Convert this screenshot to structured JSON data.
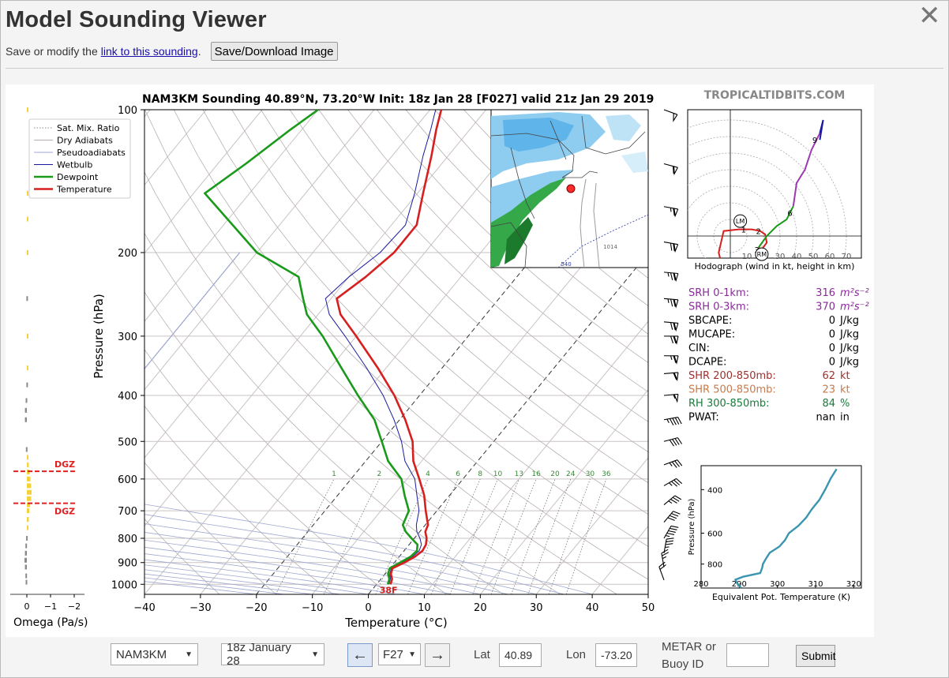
{
  "window": {
    "title": "Model Sounding Viewer",
    "close_glyph": "✕",
    "subline_text": "Save or modify the",
    "link_text": "link to this sounding",
    "subline_period": ".",
    "save_button": "Save/Download Image"
  },
  "figure": {
    "chart_title": "NAM3KM Sounding 40.89°N, 73.20°W Init: 18z Jan 28 [F027] valid 21z Jan 29 2019",
    "brand": "TROPICALTIDBITS.COM",
    "legend": [
      "Sat. Mix. Ratio",
      "Dry Adiabats",
      "Pseudoadiabats",
      "Wetbulb",
      "Dewpoint",
      "Temperature"
    ],
    "legend_colors": [
      "#888888",
      "#b9b0b0",
      "#9fa8d0",
      "#1a1aa0",
      "#1a9a1a",
      "#d61f1f"
    ],
    "xlabel": "Temperature (°C)",
    "ylabel": "Pressure (hPa)",
    "omega_label": "Omega (Pa/s)",
    "omega_ticks": [
      "0",
      "−1",
      "−2"
    ],
    "dgz_label": "DGZ",
    "surface_temp_label": "38F",
    "mix_ratio_labels": [
      "1",
      "2",
      "4",
      "6",
      "8",
      "10",
      "13",
      "16",
      "20",
      "24",
      "30",
      "36"
    ],
    "hodograph_caption": "Hodograph (wind in kt, height in km)",
    "hodo_ring_labels": [
      "10",
      "20",
      "30",
      "40",
      "50",
      "60",
      "70"
    ],
    "hodo_height_labels": [
      "1",
      "2",
      "3",
      "6",
      "9"
    ],
    "hodo_markers": [
      "LM",
      "RM"
    ],
    "theta_e_xlabel": "Equivalent Pot. Temperature (K)",
    "theta_e_ylabel": "Pressure (hPa)",
    "theta_e_xticks": [
      "280",
      "290",
      "300",
      "310",
      "320"
    ],
    "theta_e_yticks": [
      "400",
      "600",
      "800"
    ],
    "map_labels": [
      "540",
      "1014"
    ]
  },
  "indices": [
    {
      "label": "SRH 0-1km:",
      "value": "316",
      "unit": "m²s⁻²",
      "color": "#8a2a9a"
    },
    {
      "label": "SRH 0-3km:",
      "value": "370",
      "unit": "m²s⁻²",
      "color": "#8a2a9a"
    },
    {
      "label": "SBCAPE:",
      "value": "0",
      "unit": "J/kg",
      "color": "#000000"
    },
    {
      "label": "MUCAPE:",
      "value": "0",
      "unit": "J/kg",
      "color": "#000000"
    },
    {
      "label": "CIN:",
      "value": "0",
      "unit": "J/kg",
      "color": "#000000"
    },
    {
      "label": "DCAPE:",
      "value": "0",
      "unit": "J/kg",
      "color": "#000000"
    },
    {
      "label": "SHR 200-850mb:",
      "value": "62",
      "unit": "kt",
      "color": "#a03030"
    },
    {
      "label": "SHR 500-850mb:",
      "value": "23",
      "unit": "kt",
      "color": "#c87a4a"
    },
    {
      "label": "RH 300-850mb:",
      "value": "84",
      "unit": "%",
      "color": "#1a7a3a"
    },
    {
      "label": "PWAT:",
      "value": "nan",
      "unit": "in",
      "color": "#000000"
    }
  ],
  "controls": {
    "model": "NAM3KM",
    "run": "18z January 28",
    "prev_glyph": "🡐",
    "forecast_hour": "F27",
    "next_glyph": "🡒",
    "lat_label": "Lat",
    "lat_value": "40.89",
    "lon_label": "Lon",
    "lon_value": "-73.20",
    "metar_label_line1": "METAR or",
    "metar_label_line2": "Buoy ID",
    "metar_value": "",
    "submit": "Submit"
  },
  "chart_data": {
    "type": "line",
    "title": "NAM3KM Sounding 40.89°N, 73.20°W Init: 18z Jan 28 [F027] valid 21z Jan 29 2019",
    "xlabel": "Temperature (°C)",
    "ylabel": "Pressure (hPa)",
    "xlim": [
      -40,
      50
    ],
    "ylim": [
      1050,
      100
    ],
    "yscale": "log",
    "x_ticks": [
      -40,
      -30,
      -20,
      -10,
      0,
      10,
      20,
      30,
      40,
      50
    ],
    "y_ticks": [
      100,
      200,
      300,
      400,
      500,
      600,
      700,
      800,
      900,
      1000
    ],
    "skew": true,
    "series": [
      {
        "name": "Temperature",
        "color": "#d61f1f",
        "points": [
          [
            1000,
            2.5
          ],
          [
            975,
            2.0
          ],
          [
            950,
            1.0
          ],
          [
            925,
            0.5
          ],
          [
            900,
            1.8
          ],
          [
            875,
            2.8
          ],
          [
            850,
            3.3
          ],
          [
            825,
            3.0
          ],
          [
            800,
            2.2
          ],
          [
            775,
            1.0
          ],
          [
            750,
            0.5
          ],
          [
            700,
            -2.0
          ],
          [
            650,
            -4.5
          ],
          [
            600,
            -7.8
          ],
          [
            550,
            -11.5
          ],
          [
            500,
            -14.5
          ],
          [
            450,
            -19.0
          ],
          [
            400,
            -24.5
          ],
          [
            350,
            -31.5
          ],
          [
            300,
            -40.0
          ],
          [
            270,
            -46.0
          ],
          [
            250,
            -49.0
          ],
          [
            225,
            -47.0
          ],
          [
            200,
            -45.5
          ],
          [
            175,
            -45.5
          ],
          [
            150,
            -49.0
          ],
          [
            125,
            -53.0
          ],
          [
            110,
            -56.0
          ],
          [
            100,
            -58.0
          ]
        ]
      },
      {
        "name": "Dewpoint",
        "color": "#1a9a1a",
        "points": [
          [
            1000,
            2.0
          ],
          [
            975,
            1.5
          ],
          [
            950,
            0.5
          ],
          [
            925,
            0.0
          ],
          [
            900,
            1.0
          ],
          [
            875,
            2.0
          ],
          [
            850,
            2.3
          ],
          [
            825,
            1.5
          ],
          [
            800,
            -0.5
          ],
          [
            775,
            -2.5
          ],
          [
            750,
            -4.0
          ],
          [
            700,
            -5.0
          ],
          [
            650,
            -8.0
          ],
          [
            600,
            -11.0
          ],
          [
            550,
            -16.0
          ],
          [
            500,
            -20.0
          ],
          [
            450,
            -24.5
          ],
          [
            400,
            -31.0
          ],
          [
            350,
            -38.0
          ],
          [
            300,
            -46.0
          ],
          [
            270,
            -52.0
          ],
          [
            250,
            -55.0
          ],
          [
            225,
            -59.0
          ],
          [
            200,
            -70.0
          ],
          [
            150,
            -88.0
          ],
          [
            130,
            -85.0
          ],
          [
            110,
            -82.0
          ],
          [
            100,
            -80.0
          ]
        ]
      },
      {
        "name": "Wetbulb",
        "color": "#1a1aa0",
        "points": [
          [
            1000,
            2.2
          ],
          [
            975,
            1.7
          ],
          [
            950,
            0.8
          ],
          [
            925,
            0.3
          ],
          [
            900,
            1.4
          ],
          [
            875,
            2.4
          ],
          [
            850,
            2.7
          ],
          [
            825,
            2.2
          ],
          [
            800,
            1.0
          ],
          [
            775,
            -0.5
          ],
          [
            750,
            -1.6
          ],
          [
            700,
            -3.2
          ],
          [
            650,
            -5.8
          ],
          [
            600,
            -8.6
          ],
          [
            550,
            -13.0
          ],
          [
            500,
            -16.5
          ],
          [
            450,
            -21.0
          ],
          [
            400,
            -26.5
          ],
          [
            350,
            -33.5
          ],
          [
            300,
            -42.0
          ],
          [
            270,
            -48.0
          ],
          [
            250,
            -51.0
          ],
          [
            225,
            -50.0
          ],
          [
            200,
            -48.0
          ],
          [
            175,
            -47.5
          ],
          [
            150,
            -50.5
          ],
          [
            125,
            -54.5
          ],
          [
            110,
            -57.0
          ],
          [
            100,
            -59.0
          ]
        ]
      }
    ],
    "omega_profile": [
      {
        "p": 100,
        "omega": -0.02
      },
      {
        "p": 150,
        "omega": -0.03
      },
      {
        "p": 170,
        "omega": -0.06
      },
      {
        "p": 200,
        "omega": -0.05
      },
      {
        "p": 250,
        "omega": 0.02
      },
      {
        "p": 300,
        "omega": -0.03
      },
      {
        "p": 350,
        "omega": -0.03
      },
      {
        "p": 380,
        "omega": 0.02
      },
      {
        "p": 410,
        "omega": 0.05
      },
      {
        "p": 430,
        "omega": 0.08
      },
      {
        "p": 450,
        "omega": 0.08
      },
      {
        "p": 520,
        "omega": 0.04
      },
      {
        "p": 540,
        "omega": -0.05
      },
      {
        "p": 560,
        "omega": -0.08
      },
      {
        "p": 580,
        "omega": -0.12
      },
      {
        "p": 600,
        "omega": -0.15
      },
      {
        "p": 620,
        "omega": -0.18
      },
      {
        "p": 640,
        "omega": -0.2
      },
      {
        "p": 660,
        "omega": -0.18
      },
      {
        "p": 680,
        "omega": -0.14
      },
      {
        "p": 700,
        "omega": -0.1
      },
      {
        "p": 730,
        "omega": -0.08
      },
      {
        "p": 760,
        "omega": -0.06
      },
      {
        "p": 800,
        "omega": 0.03
      },
      {
        "p": 830,
        "omega": 0.06
      },
      {
        "p": 860,
        "omega": 0.08
      },
      {
        "p": 890,
        "omega": 0.1
      },
      {
        "p": 920,
        "omega": 0.08
      },
      {
        "p": 960,
        "omega": 0.06
      },
      {
        "p": 990,
        "omega": 0.05
      }
    ],
    "dgz": [
      578,
      675
    ],
    "surface_temp_label": "38F",
    "hodograph": {
      "caption": "Hodograph (wind in kt, height in km)",
      "rings_kt": [
        10,
        20,
        30,
        40,
        50,
        60,
        70
      ],
      "path_uv": [
        [
          -5,
          -18
        ],
        [
          -7,
          -10
        ],
        [
          -4,
          3
        ],
        [
          5,
          4
        ],
        [
          13,
          4
        ],
        [
          18,
          3
        ],
        [
          21,
          1
        ],
        [
          22,
          -4
        ],
        [
          19,
          -8
        ],
        [
          17,
          -7
        ],
        [
          22,
          0
        ],
        [
          28,
          6
        ],
        [
          34,
          10
        ],
        [
          38,
          18
        ],
        [
          40,
          32
        ],
        [
          45,
          40
        ],
        [
          49,
          52
        ],
        [
          54,
          62
        ],
        [
          56,
          70
        ],
        [
          54,
          58
        ]
      ],
      "height_labels": [
        {
          "km": "1",
          "u": 8,
          "v": 4
        },
        {
          "km": "2",
          "u": 17,
          "v": 3
        },
        {
          "km": "3",
          "u": 16,
          "v": -8
        },
        {
          "km": "6",
          "u": 36,
          "v": 14
        },
        {
          "km": "9",
          "u": 51,
          "v": 58
        }
      ],
      "LM": [
        6,
        9
      ],
      "RM": [
        19,
        -11
      ]
    },
    "theta_e": {
      "xlabel": "Equivalent Pot. Temperature (K)",
      "ylabel": "Pressure (hPa)",
      "xlim": [
        280,
        322
      ],
      "ylim": [
        1000,
        320
      ],
      "points": [
        [
          1000,
          290.5
        ],
        [
          960,
          289.5
        ],
        [
          925,
          289.0
        ],
        [
          900,
          291.0
        ],
        [
          870,
          295.5
        ],
        [
          830,
          296.0
        ],
        [
          800,
          296.2
        ],
        [
          760,
          297.0
        ],
        [
          720,
          298.0
        ],
        [
          680,
          300.5
        ],
        [
          640,
          302.0
        ],
        [
          600,
          303.0
        ],
        [
          560,
          305.5
        ],
        [
          520,
          307.5
        ],
        [
          480,
          309.0
        ],
        [
          440,
          311.0
        ],
        [
          400,
          312.5
        ],
        [
          360,
          314.0
        ],
        [
          330,
          315.5
        ]
      ]
    },
    "wind_barbs": [
      {
        "p": 100,
        "speed": 50,
        "dir": 290
      },
      {
        "p": 130,
        "speed": 60,
        "dir": 285
      },
      {
        "p": 160,
        "speed": 65,
        "dir": 280
      },
      {
        "p": 190,
        "speed": 70,
        "dir": 280
      },
      {
        "p": 220,
        "speed": 75,
        "dir": 275
      },
      {
        "p": 250,
        "speed": 75,
        "dir": 275
      },
      {
        "p": 280,
        "speed": 70,
        "dir": 275
      },
      {
        "p": 300,
        "speed": 70,
        "dir": 270
      },
      {
        "p": 330,
        "speed": 65,
        "dir": 270
      },
      {
        "p": 360,
        "speed": 60,
        "dir": 265
      },
      {
        "p": 400,
        "speed": 55,
        "dir": 265
      },
      {
        "p": 450,
        "speed": 45,
        "dir": 260
      },
      {
        "p": 500,
        "speed": 40,
        "dir": 255
      },
      {
        "p": 560,
        "speed": 35,
        "dir": 250
      },
      {
        "p": 620,
        "speed": 35,
        "dir": 240
      },
      {
        "p": 680,
        "speed": 35,
        "dir": 230
      },
      {
        "p": 740,
        "speed": 40,
        "dir": 220
      },
      {
        "p": 800,
        "speed": 45,
        "dir": 210
      },
      {
        "p": 860,
        "speed": 35,
        "dir": 190
      },
      {
        "p": 920,
        "speed": 25,
        "dir": 170
      },
      {
        "p": 980,
        "speed": 20,
        "dir": 160
      }
    ]
  }
}
